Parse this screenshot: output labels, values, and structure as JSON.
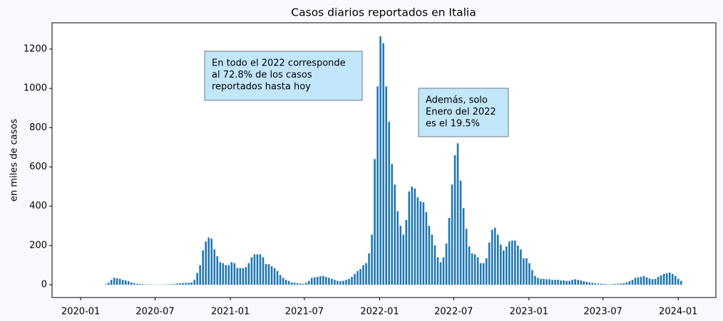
{
  "chart_data": {
    "type": "bar",
    "title": "Casos diarios reportados en Italia",
    "ylabel": "en miles de casos",
    "color": "#1f77b4",
    "annotations": [
      {
        "lines": [
          "En todo el 2022 corresponde",
          "al 72.8% de los casos",
          "reportados hasta hoy"
        ]
      },
      {
        "lines": [
          "Además, solo",
          "Enero del 2022",
          "es el 19.5%"
        ]
      }
    ],
    "xlim": [
      "2019-10-23",
      "2024-04-02"
    ],
    "xticks": [
      {
        "value": "2020-01-01",
        "label": "2020-01"
      },
      {
        "value": "2020-07-01",
        "label": "2020-07"
      },
      {
        "value": "2021-01-01",
        "label": "2021-01"
      },
      {
        "value": "2021-07-01",
        "label": "2021-07"
      },
      {
        "value": "2022-01-01",
        "label": "2022-01"
      },
      {
        "value": "2022-07-01",
        "label": "2022-07"
      },
      {
        "value": "2023-01-01",
        "label": "2023-01"
      },
      {
        "value": "2023-07-01",
        "label": "2023-07"
      },
      {
        "value": "2024-01-01",
        "label": "2024-01"
      }
    ],
    "ylim": [
      -65,
      1334
    ],
    "yticks": [
      0,
      200,
      400,
      600,
      800,
      1000,
      1200
    ],
    "x": [
      "2020-03-02",
      "2020-03-09",
      "2020-03-16",
      "2020-03-23",
      "2020-03-30",
      "2020-04-06",
      "2020-04-13",
      "2020-04-20",
      "2020-04-27",
      "2020-05-04",
      "2020-05-11",
      "2020-05-18",
      "2020-05-25",
      "2020-06-01",
      "2020-06-08",
      "2020-06-15",
      "2020-06-22",
      "2020-06-29",
      "2020-07-06",
      "2020-07-13",
      "2020-07-20",
      "2020-07-27",
      "2020-08-03",
      "2020-08-10",
      "2020-08-17",
      "2020-08-24",
      "2020-08-31",
      "2020-09-07",
      "2020-09-14",
      "2020-09-21",
      "2020-09-28",
      "2020-10-05",
      "2020-10-12",
      "2020-10-19",
      "2020-10-26",
      "2020-11-02",
      "2020-11-09",
      "2020-11-16",
      "2020-11-23",
      "2020-11-30",
      "2020-12-07",
      "2020-12-14",
      "2020-12-21",
      "2020-12-28",
      "2021-01-04",
      "2021-01-11",
      "2021-01-18",
      "2021-01-25",
      "2021-02-01",
      "2021-02-08",
      "2021-02-15",
      "2021-02-22",
      "2021-03-01",
      "2021-03-08",
      "2021-03-15",
      "2021-03-22",
      "2021-03-29",
      "2021-04-05",
      "2021-04-12",
      "2021-04-19",
      "2021-04-26",
      "2021-05-03",
      "2021-05-10",
      "2021-05-17",
      "2021-05-24",
      "2021-05-31",
      "2021-06-07",
      "2021-06-14",
      "2021-06-21",
      "2021-06-28",
      "2021-07-05",
      "2021-07-12",
      "2021-07-19",
      "2021-07-26",
      "2021-08-02",
      "2021-08-09",
      "2021-08-16",
      "2021-08-23",
      "2021-08-30",
      "2021-09-06",
      "2021-09-13",
      "2021-09-20",
      "2021-09-27",
      "2021-10-04",
      "2021-10-11",
      "2021-10-18",
      "2021-10-25",
      "2021-11-01",
      "2021-11-08",
      "2021-11-15",
      "2021-11-22",
      "2021-11-29",
      "2021-12-06",
      "2021-12-13",
      "2021-12-20",
      "2021-12-27",
      "2022-01-03",
      "2022-01-10",
      "2022-01-17",
      "2022-01-24",
      "2022-01-31",
      "2022-02-07",
      "2022-02-14",
      "2022-02-21",
      "2022-02-28",
      "2022-03-07",
      "2022-03-14",
      "2022-03-21",
      "2022-03-28",
      "2022-04-04",
      "2022-04-11",
      "2022-04-18",
      "2022-04-25",
      "2022-05-02",
      "2022-05-09",
      "2022-05-16",
      "2022-05-23",
      "2022-05-30",
      "2022-06-06",
      "2022-06-13",
      "2022-06-20",
      "2022-06-27",
      "2022-07-04",
      "2022-07-11",
      "2022-07-18",
      "2022-07-25",
      "2022-08-01",
      "2022-08-08",
      "2022-08-15",
      "2022-08-22",
      "2022-08-29",
      "2022-09-05",
      "2022-09-12",
      "2022-09-19",
      "2022-09-26",
      "2022-10-03",
      "2022-10-10",
      "2022-10-17",
      "2022-10-24",
      "2022-10-31",
      "2022-11-07",
      "2022-11-14",
      "2022-11-21",
      "2022-11-28",
      "2022-12-05",
      "2022-12-12",
      "2022-12-19",
      "2022-12-26",
      "2023-01-02",
      "2023-01-09",
      "2023-01-16",
      "2023-01-23",
      "2023-01-30",
      "2023-02-06",
      "2023-02-13",
      "2023-02-20",
      "2023-02-27",
      "2023-03-06",
      "2023-03-13",
      "2023-03-20",
      "2023-03-27",
      "2023-04-03",
      "2023-04-10",
      "2023-04-17",
      "2023-04-24",
      "2023-05-01",
      "2023-05-08",
      "2023-05-15",
      "2023-05-22",
      "2023-05-29",
      "2023-06-05",
      "2023-06-12",
      "2023-06-19",
      "2023-06-26",
      "2023-07-03",
      "2023-07-10",
      "2023-07-17",
      "2023-07-24",
      "2023-07-31",
      "2023-08-07",
      "2023-08-14",
      "2023-08-21",
      "2023-08-28",
      "2023-09-04",
      "2023-09-11",
      "2023-09-18",
      "2023-09-25",
      "2023-10-02",
      "2023-10-09",
      "2023-10-16",
      "2023-10-23",
      "2023-10-30",
      "2023-11-06",
      "2023-11-13",
      "2023-11-20",
      "2023-11-27",
      "2023-12-04",
      "2023-12-11",
      "2023-12-18",
      "2023-12-25",
      "2024-01-01",
      "2024-01-08"
    ],
    "values": [
      3,
      10,
      25,
      35,
      33,
      30,
      25,
      22,
      18,
      12,
      8,
      5,
      4,
      3,
      2,
      2,
      2,
      1,
      1,
      1,
      1,
      2,
      2,
      3,
      4,
      6,
      8,
      9,
      10,
      10,
      12,
      25,
      60,
      100,
      175,
      220,
      240,
      235,
      180,
      145,
      115,
      110,
      100,
      100,
      115,
      110,
      85,
      85,
      85,
      90,
      110,
      140,
      155,
      155,
      155,
      140,
      105,
      105,
      95,
      85,
      70,
      50,
      35,
      25,
      20,
      12,
      10,
      8,
      6,
      5,
      10,
      20,
      35,
      38,
      40,
      43,
      45,
      40,
      35,
      30,
      25,
      20,
      18,
      20,
      25,
      30,
      40,
      55,
      70,
      80,
      100,
      110,
      160,
      255,
      640,
      1010,
      1265,
      1230,
      1010,
      830,
      615,
      510,
      375,
      300,
      255,
      330,
      475,
      500,
      490,
      445,
      425,
      420,
      370,
      300,
      255,
      200,
      140,
      115,
      140,
      210,
      340,
      510,
      660,
      720,
      530,
      390,
      285,
      195,
      160,
      155,
      140,
      110,
      110,
      135,
      215,
      280,
      290,
      255,
      205,
      175,
      195,
      220,
      225,
      225,
      200,
      180,
      135,
      135,
      110,
      75,
      45,
      35,
      30,
      30,
      28,
      28,
      25,
      25,
      25,
      22,
      22,
      20,
      20,
      25,
      28,
      25,
      22,
      18,
      15,
      12,
      10,
      8,
      6,
      5,
      4,
      3,
      2,
      3,
      4,
      5,
      6,
      8,
      12,
      18,
      25,
      35,
      38,
      40,
      45,
      38,
      32,
      28,
      30,
      40,
      48,
      55,
      58,
      62,
      55,
      45,
      30,
      20
    ]
  }
}
